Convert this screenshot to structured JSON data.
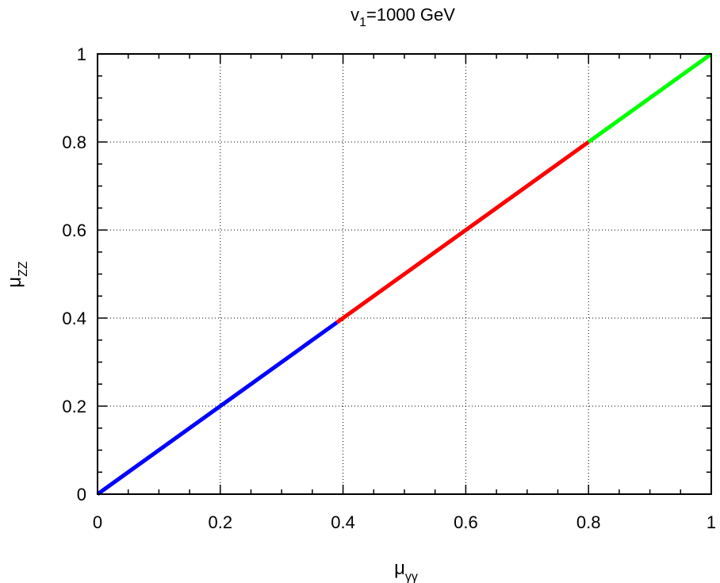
{
  "chart_data": {
    "type": "line",
    "title": {
      "base": "v",
      "subscript": "1",
      "rest": "=1000 GeV"
    },
    "xlabel": {
      "base": "μ",
      "subscript": "γγ"
    },
    "ylabel": {
      "base": "μ",
      "subscript": "ZZ"
    },
    "xlim": [
      0,
      1
    ],
    "ylim": [
      0,
      1
    ],
    "xticks": [
      {
        "value": 0,
        "label": "0"
      },
      {
        "value": 0.2,
        "label": "0.2"
      },
      {
        "value": 0.4,
        "label": "0.4"
      },
      {
        "value": 0.6,
        "label": "0.6"
      },
      {
        "value": 0.8,
        "label": "0.8"
      },
      {
        "value": 1,
        "label": "1"
      }
    ],
    "yticks": [
      {
        "value": 0,
        "label": "0"
      },
      {
        "value": 0.2,
        "label": "0.2"
      },
      {
        "value": 0.4,
        "label": "0.4"
      },
      {
        "value": 0.6,
        "label": "0.6"
      },
      {
        "value": 0.8,
        "label": "0.8"
      },
      {
        "value": 1,
        "label": "1"
      }
    ],
    "grid": true,
    "series": [
      {
        "color": "#0000ff",
        "x": [
          0,
          0.39
        ],
        "y": [
          0,
          0.39
        ]
      },
      {
        "color": "#ff0000",
        "x": [
          0.39,
          0.8
        ],
        "y": [
          0.39,
          0.8
        ]
      },
      {
        "color": "#00ff00",
        "x": [
          0.8,
          1.0
        ],
        "y": [
          0.8,
          1.0
        ]
      }
    ]
  }
}
